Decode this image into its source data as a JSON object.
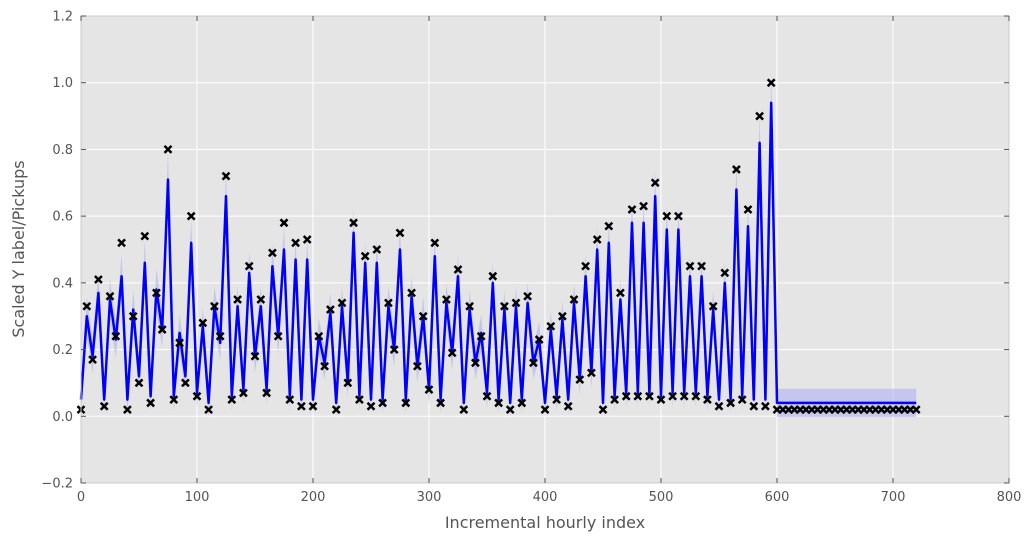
{
  "chart_data": {
    "type": "line",
    "xlabel": "Incremental hourly index",
    "ylabel": "Scaled Y label/Pickups",
    "xlim": [
      0,
      800
    ],
    "ylim": [
      -0.2,
      1.2
    ],
    "xticks": [
      0,
      100,
      200,
      300,
      400,
      500,
      600,
      700,
      800
    ],
    "yticks": [
      -0.2,
      0.0,
      0.2,
      0.4,
      0.6,
      0.8,
      1.0,
      1.2
    ],
    "xtick_labels": [
      "0",
      "100",
      "200",
      "300",
      "400",
      "500",
      "600",
      "700",
      "800"
    ],
    "ytick_labels": [
      "−0.2",
      "0.0",
      "0.2",
      "0.4",
      "0.6",
      "0.8",
      "1.0",
      "1.2"
    ],
    "grid": true,
    "background": "#e5e5e5",
    "colors": {
      "line": "#0000ff",
      "band": "#b0b0f0",
      "markers": "#000000",
      "grid": "#ffffff"
    },
    "series": [
      {
        "kind": "observed",
        "marker": "x",
        "x": [
          0,
          5,
          10,
          15,
          20,
          25,
          30,
          35,
          40,
          45,
          50,
          55,
          60,
          65,
          70,
          75,
          80,
          85,
          90,
          95,
          100,
          105,
          110,
          115,
          120,
          125,
          130,
          135,
          140,
          145,
          150,
          155,
          160,
          165,
          170,
          175,
          180,
          185,
          190,
          195,
          200,
          205,
          210,
          215,
          220,
          225,
          230,
          235,
          240,
          245,
          250,
          255,
          260,
          265,
          270,
          275,
          280,
          285,
          290,
          295,
          300,
          305,
          310,
          315,
          320,
          325,
          330,
          335,
          340,
          345,
          350,
          355,
          360,
          365,
          370,
          375,
          380,
          385,
          390,
          395,
          400,
          405,
          410,
          415,
          420,
          425,
          430,
          435,
          440,
          445,
          450,
          455,
          460,
          465,
          470,
          475,
          480,
          485,
          490,
          495,
          500,
          505,
          510,
          515,
          520,
          525,
          530,
          535,
          540,
          545,
          550,
          555,
          560,
          565,
          570,
          575,
          580,
          585,
          590,
          595,
          600,
          605,
          610,
          615,
          620,
          625,
          630,
          635,
          640,
          645,
          650,
          655,
          660,
          665,
          670,
          675,
          680,
          685,
          690,
          695,
          700,
          705,
          710,
          715,
          720
        ],
        "y": [
          0.02,
          0.33,
          0.17,
          0.41,
          0.03,
          0.36,
          0.24,
          0.52,
          0.02,
          0.3,
          0.1,
          0.54,
          0.04,
          0.37,
          0.26,
          0.8,
          0.05,
          0.22,
          0.1,
          0.6,
          0.06,
          0.28,
          0.02,
          0.33,
          0.24,
          0.72,
          0.05,
          0.35,
          0.07,
          0.45,
          0.18,
          0.35,
          0.07,
          0.49,
          0.24,
          0.58,
          0.05,
          0.52,
          0.03,
          0.53,
          0.03,
          0.24,
          0.15,
          0.32,
          0.02,
          0.34,
          0.1,
          0.58,
          0.05,
          0.48,
          0.03,
          0.5,
          0.04,
          0.34,
          0.2,
          0.55,
          0.04,
          0.37,
          0.15,
          0.3,
          0.08,
          0.52,
          0.04,
          0.35,
          0.19,
          0.44,
          0.02,
          0.33,
          0.16,
          0.24,
          0.06,
          0.42,
          0.04,
          0.33,
          0.02,
          0.34,
          0.04,
          0.36,
          0.16,
          0.23,
          0.02,
          0.27,
          0.05,
          0.3,
          0.03,
          0.35,
          0.11,
          0.45,
          0.13,
          0.53,
          0.02,
          0.57,
          0.05,
          0.37,
          0.06,
          0.62,
          0.06,
          0.63,
          0.06,
          0.7,
          0.05,
          0.6,
          0.06,
          0.6,
          0.06,
          0.45,
          0.06,
          0.45,
          0.05,
          0.33,
          0.03,
          0.43,
          0.04,
          0.74,
          0.05,
          0.62,
          0.03,
          0.9,
          0.03,
          1.0,
          0.02,
          0.02,
          0.02,
          0.02,
          0.02,
          0.02,
          0.02,
          0.02,
          0.02,
          0.02,
          0.02,
          0.02,
          0.02,
          0.02,
          0.02,
          0.02,
          0.02,
          0.02,
          0.02,
          0.02,
          0.02,
          0.02,
          0.02,
          0.02,
          0.02
        ]
      },
      {
        "kind": "fitted",
        "x": [
          0,
          5,
          10,
          15,
          20,
          25,
          30,
          35,
          40,
          45,
          50,
          55,
          60,
          65,
          70,
          75,
          80,
          85,
          90,
          95,
          100,
          105,
          110,
          115,
          120,
          125,
          130,
          135,
          140,
          145,
          150,
          155,
          160,
          165,
          170,
          175,
          180,
          185,
          190,
          195,
          200,
          205,
          210,
          215,
          220,
          225,
          230,
          235,
          240,
          245,
          250,
          255,
          260,
          265,
          270,
          275,
          280,
          285,
          290,
          295,
          300,
          305,
          310,
          315,
          320,
          325,
          330,
          335,
          340,
          345,
          350,
          355,
          360,
          365,
          370,
          375,
          380,
          385,
          390,
          395,
          400,
          405,
          410,
          415,
          420,
          425,
          430,
          435,
          440,
          445,
          450,
          455,
          460,
          465,
          470,
          475,
          480,
          485,
          490,
          495,
          500,
          505,
          510,
          515,
          520,
          525,
          530,
          535,
          540,
          545,
          550,
          555,
          560,
          565,
          570,
          575,
          580,
          585,
          590,
          595,
          600,
          605,
          610,
          615,
          620,
          625,
          630,
          635,
          640,
          645,
          650,
          655,
          660,
          665,
          670,
          675,
          680,
          685,
          690,
          695,
          700,
          705,
          710,
          715,
          720
        ],
        "y": [
          0.05,
          0.3,
          0.18,
          0.37,
          0.05,
          0.35,
          0.23,
          0.42,
          0.05,
          0.32,
          0.12,
          0.46,
          0.06,
          0.38,
          0.26,
          0.71,
          0.06,
          0.25,
          0.12,
          0.52,
          0.07,
          0.27,
          0.04,
          0.33,
          0.22,
          0.66,
          0.06,
          0.33,
          0.08,
          0.43,
          0.18,
          0.33,
          0.08,
          0.45,
          0.24,
          0.5,
          0.06,
          0.47,
          0.05,
          0.47,
          0.05,
          0.24,
          0.16,
          0.31,
          0.04,
          0.33,
          0.1,
          0.55,
          0.06,
          0.46,
          0.05,
          0.46,
          0.05,
          0.33,
          0.2,
          0.5,
          0.05,
          0.36,
          0.15,
          0.3,
          0.08,
          0.48,
          0.05,
          0.34,
          0.19,
          0.42,
          0.04,
          0.32,
          0.16,
          0.25,
          0.07,
          0.4,
          0.05,
          0.32,
          0.04,
          0.33,
          0.05,
          0.34,
          0.16,
          0.23,
          0.04,
          0.26,
          0.06,
          0.29,
          0.05,
          0.34,
          0.11,
          0.42,
          0.13,
          0.5,
          0.04,
          0.52,
          0.06,
          0.35,
          0.07,
          0.58,
          0.07,
          0.58,
          0.07,
          0.66,
          0.06,
          0.56,
          0.07,
          0.56,
          0.07,
          0.42,
          0.07,
          0.42,
          0.06,
          0.32,
          0.05,
          0.4,
          0.05,
          0.68,
          0.06,
          0.57,
          0.05,
          0.82,
          0.05,
          0.94,
          0.04,
          0.04,
          0.04,
          0.04,
          0.04,
          0.04,
          0.04,
          0.04,
          0.04,
          0.04,
          0.04,
          0.04,
          0.04,
          0.04,
          0.04,
          0.04,
          0.04,
          0.04,
          0.04,
          0.04,
          0.04,
          0.04,
          0.04,
          0.04,
          0.04
        ]
      }
    ]
  }
}
